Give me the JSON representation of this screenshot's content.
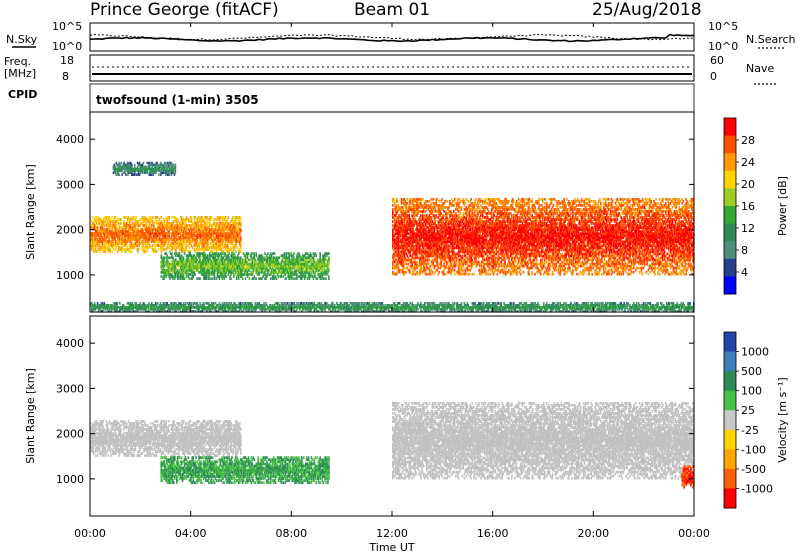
{
  "header": {
    "station": "Prince George (fitACF)",
    "beam": "Beam 01",
    "date": "25/Aug/2018"
  },
  "top_panels": {
    "nsky_label": "N.Sky",
    "nsky_ticks": [
      "10^5",
      "10^0"
    ],
    "nsearch_label": "N.Search",
    "nsearch_ticks": [
      "10^5",
      "10^0"
    ],
    "freq_label_1": "Freq.",
    "freq_label_2": "[MHz]",
    "freq_ticks": [
      "18",
      "8"
    ],
    "nave_label": "Nave",
    "nave_ticks": [
      "60",
      "0"
    ],
    "cpid_label": "CPID",
    "cpid_text": "twofsound (1-min) 3505"
  },
  "chart_data": [
    {
      "type": "heatmap",
      "panel": "power",
      "ylabel": "Slant Range [km]",
      "yticks": [
        "1000",
        "2000",
        "3000",
        "4000"
      ],
      "ylim": [
        180,
        4600
      ],
      "xlim_hours": [
        0,
        24
      ],
      "colorbar_label": "Power [dB]",
      "colorbar_ticks": [
        "28",
        "24",
        "20",
        "16",
        "12",
        "8",
        "4"
      ],
      "colorbar_colors": [
        "#ff0000",
        "#ff5000",
        "#ff9a00",
        "#ffd200",
        "#9ccd24",
        "#33a833",
        "#2e8b57",
        "#4d8f7a",
        "#27408b",
        "#0000ff"
      ],
      "echo_regions": [
        {
          "t_start": 0.0,
          "t_end": 6.0,
          "r_min": 1500,
          "r_max": 2300,
          "power_db": 22
        },
        {
          "t_start": 0.9,
          "t_end": 3.4,
          "r_min": 3200,
          "r_max": 3500,
          "power_db": 6
        },
        {
          "t_start": 2.8,
          "t_end": 9.5,
          "r_min": 900,
          "r_max": 1500,
          "power_db": 12
        },
        {
          "t_start": 12.0,
          "t_end": 24.0,
          "r_min": 1000,
          "r_max": 2700,
          "power_db": 26
        },
        {
          "t_start": 0.0,
          "t_end": 24.0,
          "r_min": 180,
          "r_max": 400,
          "power_db": 8
        }
      ]
    },
    {
      "type": "heatmap",
      "panel": "velocity",
      "ylabel": "Slant Range [km]",
      "yticks": [
        "1000",
        "2000",
        "3000",
        "4000"
      ],
      "ylim": [
        180,
        4600
      ],
      "xlim_hours": [
        0,
        24
      ],
      "xlabel": "Time UT",
      "xticks": [
        "00:00",
        "04:00",
        "08:00",
        "12:00",
        "16:00",
        "20:00",
        "00:00"
      ],
      "colorbar_label": "Velocity [m s⁻¹]",
      "colorbar_ticks": [
        "1000",
        "500",
        "100",
        "25",
        "-25",
        "-100",
        "-500",
        "-1000"
      ],
      "colorbar_colors": [
        "#2244aa",
        "#3c7fbf",
        "#2e8b57",
        "#44c044",
        "#c8c8c8",
        "#ffd200",
        "#ffa500",
        "#ff6000",
        "#ff0000"
      ],
      "ground_scatter_color": "#c0c0c0",
      "echo_regions": [
        {
          "t_start": 0.0,
          "t_end": 6.0,
          "r_min": 1500,
          "r_max": 2300,
          "velocity": 0
        },
        {
          "t_start": 2.8,
          "t_end": 9.5,
          "r_min": 900,
          "r_max": 1500,
          "velocity": 60
        },
        {
          "t_start": 12.0,
          "t_end": 24.0,
          "r_min": 1000,
          "r_max": 2700,
          "velocity": 0
        },
        {
          "t_start": 23.5,
          "t_end": 24.0,
          "r_min": 800,
          "r_max": 1300,
          "velocity": -700
        }
      ]
    }
  ]
}
